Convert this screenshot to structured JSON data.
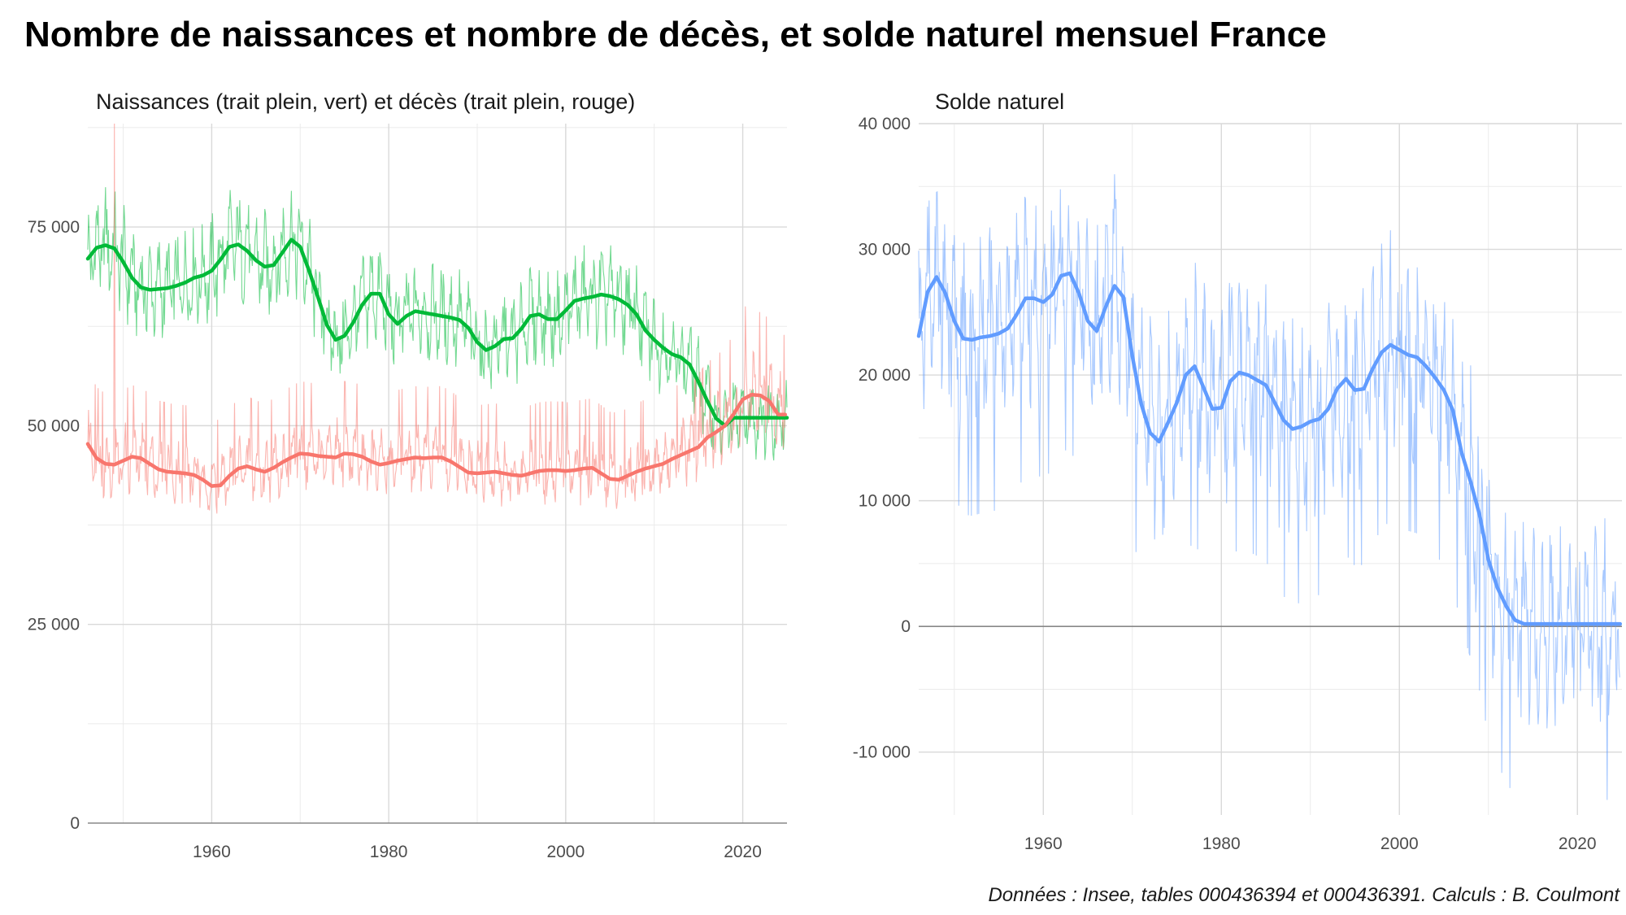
{
  "title": "Nombre de naissances et nombre de décès, et solde naturel mensuel France",
  "caption": "Données : Insee, tables 000436394 et 000436391. Calculs : B. Coulmont",
  "colors": {
    "births": "#00ba38",
    "deaths": "#f8766d",
    "balance": "#619cff"
  },
  "chart_data": [
    {
      "type": "line",
      "title": "Naissances (trait plein, vert) et décès (trait plein, rouge)",
      "xlabel": "",
      "ylabel": "",
      "xlim": [
        1946,
        2025
      ],
      "ylim": [
        0,
        88000
      ],
      "x_ticks": [
        1960,
        1980,
        2000,
        2020
      ],
      "x_tick_labels": [
        "1960",
        "1980",
        "2000",
        "2020"
      ],
      "y_ticks": [
        0,
        25000,
        50000,
        75000
      ],
      "y_tick_labels": [
        "0",
        "25 000",
        "50 000",
        "75 000"
      ],
      "grid": true,
      "series": [
        {
          "name": "Naissances",
          "color": "#00ba38",
          "smooth": {
            "x": [
              1946,
              1947,
              1948,
              1949,
              1950,
              1951,
              1952,
              1953,
              1954,
              1955,
              1956,
              1957,
              1958,
              1959,
              1960,
              1961,
              1962,
              1963,
              1964,
              1965,
              1966,
              1967,
              1968,
              1969,
              1970,
              1971,
              1972,
              1973,
              1974,
              1975,
              1976,
              1977,
              1978,
              1979,
              1980,
              1981,
              1982,
              1983,
              1984,
              1985,
              1986,
              1987,
              1988,
              1989,
              1990,
              1991,
              1992,
              1993,
              1994,
              1995,
              1996,
              1997,
              1998,
              1999,
              2000,
              2001,
              2002,
              2003,
              2004,
              2005,
              2006,
              2007,
              2008,
              2009,
              2010,
              2011,
              2012,
              2013,
              2014,
              2015,
              2016,
              2017,
              2018,
              2019,
              2020,
              2021,
              2022,
              2023,
              2024,
              2025
            ],
            "y": [
              71000,
              72400,
              72700,
              72300,
              70600,
              68600,
              67400,
              67100,
              67200,
              67300,
              67600,
              68000,
              68600,
              68900,
              69500,
              70900,
              72500,
              72800,
              72000,
              70800,
              70000,
              70200,
              71800,
              73400,
              72500,
              69500,
              66200,
              62700,
              60800,
              61300,
              63000,
              65200,
              66600,
              66600,
              64000,
              62800,
              63800,
              64400,
              64200,
              64000,
              63800,
              63600,
              63300,
              62300,
              60500,
              59500,
              60000,
              60900,
              61000,
              62200,
              63800,
              64000,
              63400,
              63400,
              64500,
              65700,
              66000,
              66200,
              66500,
              66300,
              65900,
              65200,
              64000,
              62000,
              60800,
              59800,
              59000,
              58600,
              57700,
              55500,
              53100,
              50900,
              50000,
              51000,
              51000,
              51000,
              51000,
              51000,
              51000,
              51000
            ],
            "x_range": [
              1946,
              2025
            ]
          }
        },
        {
          "name": "Décès",
          "color": "#f8766d",
          "smooth": {
            "x": [
              1946,
              1947,
              1948,
              1949,
              1950,
              1951,
              1952,
              1953,
              1954,
              1955,
              1956,
              1957,
              1958,
              1959,
              1960,
              1961,
              1962,
              1963,
              1964,
              1965,
              1966,
              1967,
              1968,
              1969,
              1970,
              1971,
              1972,
              1973,
              1974,
              1975,
              1976,
              1977,
              1978,
              1979,
              1980,
              1981,
              1982,
              1983,
              1984,
              1985,
              1986,
              1987,
              1988,
              1989,
              1990,
              1991,
              1992,
              1993,
              1994,
              1995,
              1996,
              1997,
              1998,
              1999,
              2000,
              2001,
              2002,
              2003,
              2004,
              2005,
              2006,
              2007,
              2008,
              2009,
              2010,
              2011,
              2012,
              2013,
              2014,
              2015,
              2016,
              2017,
              2018,
              2019,
              2020,
              2021,
              2022,
              2023,
              2024,
              2025
            ],
            "y": [
              47700,
              45900,
              45200,
              45100,
              45600,
              46100,
              45900,
              45200,
              44500,
              44200,
              44100,
              44000,
              43800,
              43200,
              42400,
              42500,
              43700,
              44600,
              44900,
              44500,
              44200,
              44700,
              45400,
              46000,
              46500,
              46400,
              46200,
              46100,
              46000,
              46500,
              46400,
              46100,
              45500,
              45100,
              45300,
              45600,
              45800,
              46000,
              45900,
              46000,
              46000,
              45500,
              44800,
              44100,
              44000,
              44100,
              44200,
              44000,
              43800,
              43700,
              44000,
              44300,
              44400,
              44400,
              44300,
              44400,
              44600,
              44700,
              44000,
              43300,
              43200,
              43700,
              44200,
              44600,
              44900,
              45200,
              45800,
              46300,
              46800,
              47300,
              48500,
              49200,
              50000,
              51500,
              53300,
              53900,
              53800,
              53100,
              51400,
              51400
            ],
            "x_range": [
              1946,
              2024.8
            ]
          }
        }
      ],
      "monthly_extremes": [
        {
          "date": 1949.0,
          "value": 88000,
          "series": "Décès"
        },
        {
          "date": 2020.3,
          "value": 65000,
          "series": "Décès"
        }
      ]
    },
    {
      "type": "line",
      "title": "Solde naturel",
      "xlabel": "",
      "ylabel": "",
      "xlim": [
        1946,
        2025
      ],
      "ylim": [
        -15000,
        40000
      ],
      "x_ticks": [
        1960,
        1980,
        2000,
        2020
      ],
      "x_tick_labels": [
        "1960",
        "1980",
        "2000",
        "2020"
      ],
      "y_ticks": [
        -10000,
        0,
        10000,
        20000,
        30000,
        40000
      ],
      "y_tick_labels": [
        "-10 000",
        "0",
        "10 000",
        "20 000",
        "30 000",
        "40 000"
      ],
      "grid": true,
      "series": [
        {
          "name": "Solde naturel",
          "color": "#619cff",
          "smooth": {
            "x": [
              1946,
              1947,
              1948,
              1949,
              1950,
              1951,
              1952,
              1953,
              1954,
              1955,
              1956,
              1957,
              1958,
              1959,
              1960,
              1961,
              1962,
              1963,
              1964,
              1965,
              1966,
              1967,
              1968,
              1969,
              1970,
              1971,
              1972,
              1973,
              1974,
              1975,
              1976,
              1977,
              1978,
              1979,
              1980,
              1981,
              1982,
              1983,
              1984,
              1985,
              1986,
              1987,
              1988,
              1989,
              1990,
              1991,
              1992,
              1993,
              1994,
              1995,
              1996,
              1997,
              1998,
              1999,
              2000,
              2001,
              2002,
              2003,
              2004,
              2005,
              2006,
              2007,
              2008,
              2009,
              2010,
              2011,
              2012,
              2013,
              2014,
              2015,
              2016,
              2017,
              2018,
              2019,
              2020,
              2021,
              2022,
              2023,
              2024,
              2025
            ],
            "y": [
              23100,
              26600,
              27800,
              26500,
              24300,
              22900,
              22800,
              23000,
              23100,
              23300,
              23700,
              24800,
              26100,
              26100,
              25800,
              26400,
              27900,
              28100,
              26500,
              24300,
              23500,
              25400,
              27100,
              26200,
              21500,
              17700,
              15400,
              14700,
              16200,
              17800,
              20000,
              20700,
              19000,
              17300,
              17400,
              19500,
              20200,
              20000,
              19600,
              19200,
              17800,
              16400,
              15700,
              15900,
              16300,
              16500,
              17300,
              18900,
              19700,
              18800,
              18900,
              20500,
              21800,
              22400,
              22000,
              21600,
              21400,
              20700,
              19800,
              18800,
              17200,
              13800,
              11500,
              8900,
              5300,
              3100,
              1600,
              500,
              200,
              200,
              200,
              200,
              200,
              200,
              200,
              200,
              200,
              200,
              200,
              200
            ],
            "x_range": [
              1946,
              2024.8
            ]
          }
        }
      ]
    }
  ]
}
